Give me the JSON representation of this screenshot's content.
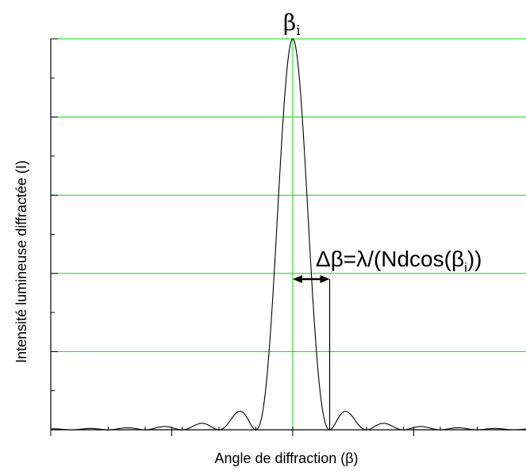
{
  "chart_data": {
    "type": "line",
    "title": "",
    "xlabel": "Angle de diffraction (β)",
    "ylabel": "Intensité lumineuse diffractée (I)",
    "peak_label": {
      "base": "β",
      "sub": "i"
    },
    "annotation": {
      "prefix": "Δβ=λ/(Ndcos(β",
      "sub": "i",
      "suffix": "))",
      "delta_beta": 1
    },
    "grid": true,
    "grid_color": "#00e000",
    "curve_color": "#000000",
    "ylim": [
      0,
      1
    ],
    "xlim": [
      -6.1,
      5.8
    ],
    "function": "sinc^2",
    "series": [
      {
        "x": [
          -6.0,
          -5.5,
          -5.0,
          -4.5,
          -4.0,
          -3.5,
          -3.0,
          -2.5,
          -2.0,
          -1.5,
          -1.43,
          -1.0,
          -0.5,
          0.0,
          0.5,
          1.0,
          1.43,
          1.5,
          2.0,
          2.5,
          3.0,
          3.5,
          4.0,
          4.5,
          5.0,
          5.5
        ],
        "y": [
          0.0,
          0.003,
          0.0,
          0.005,
          0.0,
          0.008,
          0.0,
          0.016,
          0.0,
          0.045,
          0.047,
          0.0,
          0.405,
          1.0,
          0.405,
          0.0,
          0.047,
          0.045,
          0.0,
          0.016,
          0.0,
          0.008,
          0.0,
          0.005,
          0.0,
          0.003
        ]
      }
    ]
  }
}
